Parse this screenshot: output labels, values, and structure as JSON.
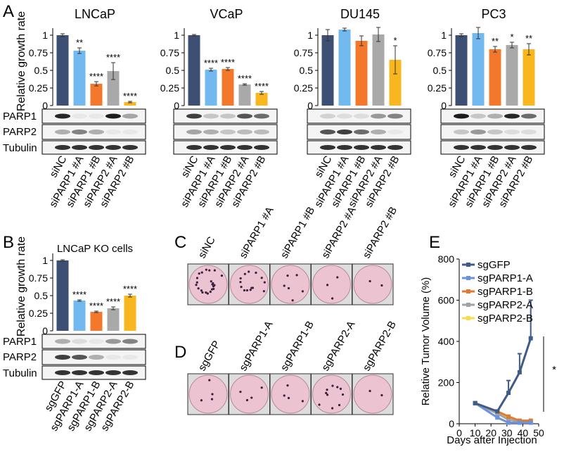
{
  "panel_labels": [
    "A",
    "B",
    "C",
    "D",
    "E"
  ],
  "blots": {
    "a_rows": [
      "PARP1",
      "PARP2",
      "Tubulin"
    ],
    "b_rows": [
      "PARP1",
      "PARP2",
      "Tubulin"
    ]
  },
  "colony": {
    "c_labels": [
      "siNC",
      "siPARP1 #A",
      "siPARP1 #B",
      "siPARP2 #A",
      "siPARP2 #B"
    ],
    "d_labels": [
      "sgGFP",
      "sgPARP1-A",
      "sgPARP1-B",
      "sgPARP2-A",
      "sgPARP2-B"
    ]
  },
  "chart_data": [
    {
      "type": "bar",
      "title": "LNCaP",
      "y_label": "Relative growth rate",
      "categories": [
        "siNC",
        "siPARP1 #A",
        "siPARP1 #B",
        "siPARP2 #A",
        "siPARP2 #B"
      ],
      "colors": [
        "#3d4f73",
        "#72b9f0",
        "#f4782c",
        "#a9a9a9",
        "#f9b71f"
      ],
      "values": [
        1,
        0.78,
        0.31,
        0.49,
        0.05
      ],
      "errors": [
        0.02,
        0.04,
        0.03,
        0.12,
        0.01
      ],
      "annotations": [
        null,
        "**",
        "****",
        "****",
        "****"
      ],
      "ylim": [
        0,
        1.1
      ],
      "yticks": [
        0,
        0.25,
        0.5,
        0.75,
        1
      ]
    },
    {
      "type": "bar",
      "title": "VCaP",
      "categories": [
        "siNC",
        "siPARP1 #A",
        "siPARP1 #B",
        "siPARP2 #A",
        "siPARP2 #B"
      ],
      "colors": [
        "#3d4f73",
        "#72b9f0",
        "#f4782c",
        "#a9a9a9",
        "#f9b71f"
      ],
      "values": [
        1,
        0.51,
        0.52,
        0.3,
        0.18
      ],
      "errors": [
        0.01,
        0.02,
        0.02,
        0.01,
        0.02
      ],
      "annotations": [
        null,
        "****",
        "****",
        "****",
        "****"
      ],
      "ylim": [
        0,
        1.1
      ],
      "yticks": [
        0,
        0.25,
        0.5,
        0.75,
        1
      ]
    },
    {
      "type": "bar",
      "title": "DU145",
      "categories": [
        "siNC",
        "siPARP1 #A",
        "siPARP1 #B",
        "siPARP2 #A",
        "siPARP2 #B"
      ],
      "colors": [
        "#3d4f73",
        "#72b9f0",
        "#f4782c",
        "#a9a9a9",
        "#f9b71f"
      ],
      "values": [
        1,
        1.08,
        0.92,
        1.01,
        0.65
      ],
      "errors": [
        0.08,
        0.02,
        0.07,
        0.1,
        0.2
      ],
      "annotations": [
        null,
        null,
        null,
        null,
        "*"
      ],
      "ylim": [
        0,
        1.1
      ],
      "yticks": [
        0,
        0.25,
        0.5,
        0.75,
        1
      ]
    },
    {
      "type": "bar",
      "title": "PC3",
      "categories": [
        "siNC",
        "siPARP1 #A",
        "siPARP1 #B",
        "siPARP2 #A",
        "siPARP2 #B"
      ],
      "colors": [
        "#3d4f73",
        "#72b9f0",
        "#f4782c",
        "#a9a9a9",
        "#f9b71f"
      ],
      "values": [
        1,
        1.03,
        0.8,
        0.86,
        0.8
      ],
      "errors": [
        0.02,
        0.08,
        0.04,
        0.04,
        0.08
      ],
      "annotations": [
        null,
        null,
        "**",
        "*",
        "**"
      ],
      "ylim": [
        0,
        1.1
      ],
      "yticks": [
        0,
        0.25,
        0.5,
        0.75,
        1
      ]
    },
    {
      "type": "bar",
      "title": "LNCaP KO cells",
      "y_label": "Relative growth rate",
      "categories": [
        "sgGFP",
        "sgPARP1-A",
        "sgPARP1-B",
        "sgPARP2-A",
        "sgPARP2-B"
      ],
      "colors": [
        "#3d4f73",
        "#72b9f0",
        "#f4782c",
        "#a9a9a9",
        "#f9b71f"
      ],
      "values": [
        1,
        0.43,
        0.27,
        0.32,
        0.5
      ],
      "errors": [
        0.01,
        0.01,
        0.01,
        0.02,
        0.02
      ],
      "annotations": [
        null,
        "****",
        "****",
        "****",
        "****"
      ],
      "ylim": [
        0,
        1.1
      ],
      "yticks": [
        0,
        0.25,
        0.5,
        0.75,
        1
      ]
    },
    {
      "type": "line",
      "x_label": "Days after Injection",
      "y_label": "Relative Tumor Volume (%)",
      "x": [
        10,
        24,
        31,
        38,
        45
      ],
      "series": [
        {
          "name": "sgGFP",
          "color": "#3f5b86",
          "values": [
            100,
            60,
            150,
            250,
            415
          ],
          "errors": [
            5,
            5,
            60,
            90,
            185
          ]
        },
        {
          "name": "sgPARP1-A",
          "color": "#6b92dc",
          "values": [
            100,
            30,
            5,
            5,
            5
          ],
          "errors": [
            5,
            5,
            3,
            3,
            3
          ]
        },
        {
          "name": "sgPARP1-B",
          "color": "#e07a30",
          "values": [
            100,
            60,
            35,
            15,
            15
          ],
          "errors": [
            5,
            5,
            5,
            3,
            3
          ]
        },
        {
          "name": "sgPARP2-A",
          "color": "#a3a3a3",
          "values": [
            100,
            50,
            20,
            10,
            10
          ],
          "errors": [
            5,
            5,
            5,
            3,
            3
          ]
        },
        {
          "name": "sgPARP2-B",
          "color": "#f3e04a",
          "values": [
            100,
            50,
            25,
            15,
            10
          ],
          "errors": [
            5,
            5,
            5,
            3,
            3
          ]
        }
      ],
      "xlim": [
        0,
        50
      ],
      "xticks": [
        0,
        10,
        20,
        30,
        40,
        50
      ],
      "ylim": [
        0,
        800
      ],
      "yticks": [
        0,
        200,
        400,
        600,
        800
      ],
      "legend": "upper left",
      "annotation": "*"
    }
  ]
}
